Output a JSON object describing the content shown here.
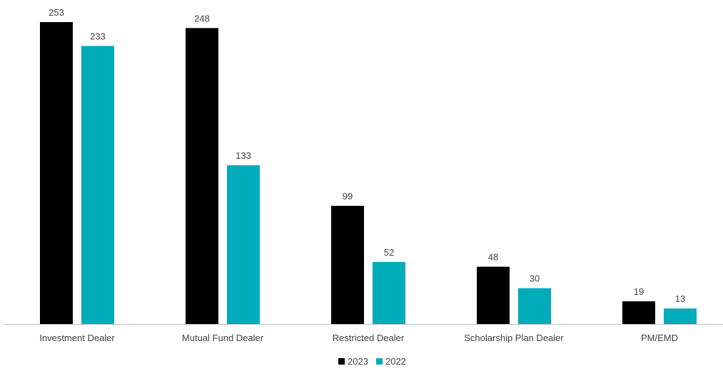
{
  "chart_data": {
    "type": "bar",
    "title": "",
    "xlabel": "",
    "ylabel": "",
    "categories": [
      "Investment Dealer",
      "Mutual Fund Dealer",
      "Restricted Dealer",
      "Scholarship Plan Dealer",
      "PM/EMD"
    ],
    "series": [
      {
        "name": "2023",
        "color": "#000000",
        "values": [
          253,
          248,
          99,
          48,
          19
        ]
      },
      {
        "name": "2022",
        "color": "#00ACBA",
        "values": [
          233,
          133,
          52,
          30,
          13
        ]
      }
    ],
    "ylim": [
      0,
      253
    ],
    "grid": false,
    "legend_position": "bottom",
    "axis_color": "#bfbfbf"
  }
}
